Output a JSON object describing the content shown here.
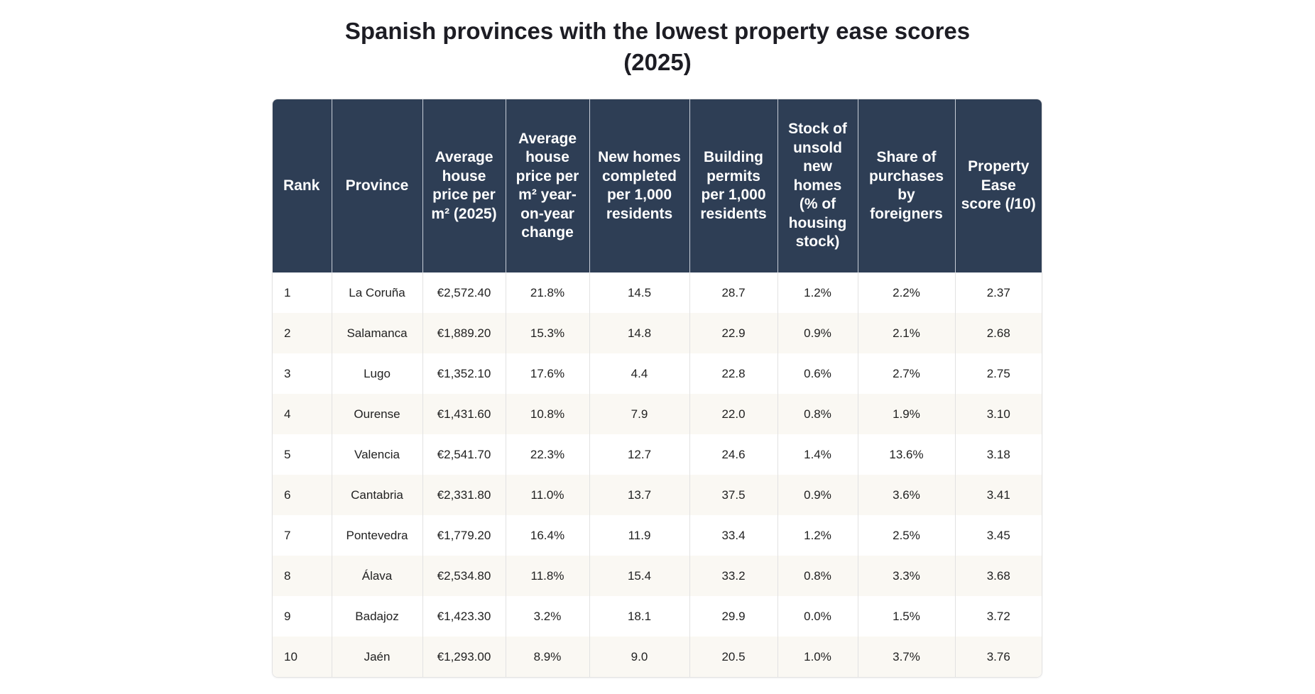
{
  "title": "Spanish provinces with the lowest property ease scores (2025)",
  "table": {
    "headers": [
      "Rank",
      "Province",
      "Average house price per m² (2025)",
      "Average house price per m² year-on-year change",
      "New homes completed per 1,000 residents",
      "Building permits per 1,000 residents",
      "Stock of unsold new homes (% of housing stock)",
      "Share of purchases by foreigners",
      "Property Ease score (/10)"
    ],
    "rows": [
      [
        "1",
        "La Coruña",
        "€2,572.40",
        "21.8%",
        "14.5",
        "28.7",
        "1.2%",
        "2.2%",
        "2.37"
      ],
      [
        "2",
        "Salamanca",
        "€1,889.20",
        "15.3%",
        "14.8",
        "22.9",
        "0.9%",
        "2.1%",
        "2.68"
      ],
      [
        "3",
        "Lugo",
        "€1,352.10",
        "17.6%",
        "4.4",
        "22.8",
        "0.6%",
        "2.7%",
        "2.75"
      ],
      [
        "4",
        "Ourense",
        "€1,431.60",
        "10.8%",
        "7.9",
        "22.0",
        "0.8%",
        "1.9%",
        "3.10"
      ],
      [
        "5",
        "Valencia",
        "€2,541.70",
        "22.3%",
        "12.7",
        "24.6",
        "1.4%",
        "13.6%",
        "3.18"
      ],
      [
        "6",
        "Cantabria",
        "€2,331.80",
        "11.0%",
        "13.7",
        "37.5",
        "0.9%",
        "3.6%",
        "3.41"
      ],
      [
        "7",
        "Pontevedra",
        "€1,779.20",
        "16.4%",
        "11.9",
        "33.4",
        "1.2%",
        "2.5%",
        "3.45"
      ],
      [
        "8",
        "Álava",
        "€2,534.80",
        "11.8%",
        "15.4",
        "33.2",
        "0.8%",
        "3.3%",
        "3.68"
      ],
      [
        "9",
        "Badajoz",
        "€1,423.30",
        "3.2%",
        "18.1",
        "29.9",
        "0.0%",
        "1.5%",
        "3.72"
      ],
      [
        "10",
        "Jaén",
        "€1,293.00",
        "8.9%",
        "9.0",
        "20.5",
        "1.0%",
        "3.7%",
        "3.76"
      ]
    ]
  },
  "colors": {
    "header_bg": "#2e3e55",
    "header_text": "#ffffff",
    "alt_row_bg": "#faf8f3"
  }
}
